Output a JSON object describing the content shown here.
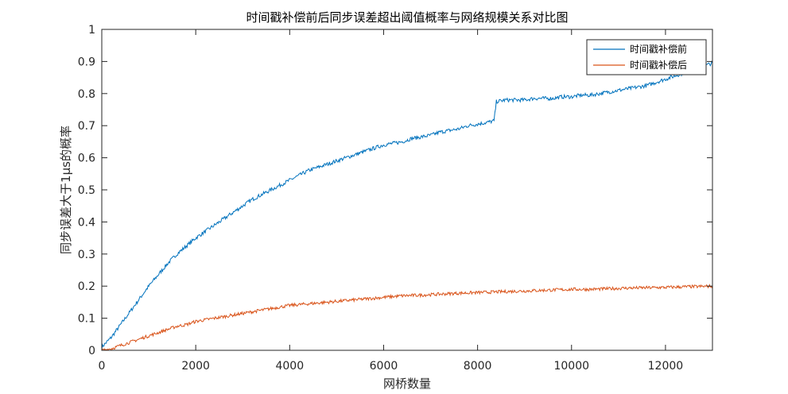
{
  "chart_data": {
    "type": "line",
    "title": "时间戳补偿前后同步误差超出阈值概率与网络规模关系对比图",
    "xlabel": "网桥数量",
    "ylabel": "同步误差大于1μs的概率",
    "xlim": [
      0,
      13000
    ],
    "ylim": [
      0,
      1
    ],
    "xticks": [
      0,
      2000,
      4000,
      6000,
      8000,
      10000,
      12000
    ],
    "xtick_labels": [
      "0",
      "2000",
      "4000",
      "6000",
      "8000",
      "10000",
      "12000"
    ],
    "yticks": [
      0,
      0.1,
      0.2,
      0.3,
      0.4,
      0.5,
      0.6,
      0.7,
      0.8,
      0.9,
      1
    ],
    "ytick_labels": [
      "0",
      "0.1",
      "0.2",
      "0.3",
      "0.4",
      "0.5",
      "0.6",
      "0.7",
      "0.8",
      "0.9",
      "1"
    ],
    "grid": false,
    "legend_position": "top-right",
    "series": [
      {
        "name": "时间戳补偿前",
        "color": "#0072BD",
        "x": [
          0,
          200,
          400,
          600,
          800,
          1000,
          1200,
          1400,
          1600,
          1800,
          2000,
          2200,
          2400,
          2600,
          2800,
          3000,
          3200,
          3400,
          3600,
          3800,
          4000,
          4200,
          4400,
          4600,
          4800,
          5000,
          5200,
          5400,
          5600,
          5800,
          6000,
          6200,
          6400,
          6600,
          6800,
          7000,
          7200,
          7400,
          7600,
          7800,
          8000,
          8200,
          8350,
          8400,
          8600,
          8800,
          9000,
          9200,
          9400,
          9600,
          9800,
          10000,
          10200,
          10400,
          10600,
          10800,
          11000,
          11200,
          11400,
          11600,
          11800,
          12000,
          12200,
          12400,
          12600,
          12800,
          13000
        ],
        "values": [
          0.01,
          0.04,
          0.08,
          0.12,
          0.16,
          0.2,
          0.235,
          0.27,
          0.3,
          0.325,
          0.35,
          0.37,
          0.39,
          0.41,
          0.43,
          0.45,
          0.47,
          0.485,
          0.5,
          0.515,
          0.53,
          0.545,
          0.56,
          0.57,
          0.58,
          0.59,
          0.6,
          0.61,
          0.62,
          0.63,
          0.64,
          0.645,
          0.65,
          0.66,
          0.665,
          0.67,
          0.68,
          0.685,
          0.69,
          0.7,
          0.705,
          0.71,
          0.715,
          0.775,
          0.78,
          0.78,
          0.78,
          0.785,
          0.785,
          0.785,
          0.79,
          0.79,
          0.795,
          0.795,
          0.8,
          0.805,
          0.81,
          0.815,
          0.82,
          0.825,
          0.835,
          0.845,
          0.855,
          0.865,
          0.875,
          0.885,
          0.895
        ]
      },
      {
        "name": "时间戳补偿后",
        "color": "#D95319",
        "x": [
          0,
          200,
          400,
          600,
          800,
          1000,
          1200,
          1400,
          1600,
          1800,
          2000,
          2400,
          2800,
          3200,
          3600,
          4000,
          4400,
          4800,
          5200,
          5600,
          6000,
          6400,
          6800,
          7200,
          7600,
          8000,
          8400,
          8800,
          9200,
          9600,
          10000,
          10400,
          10800,
          11200,
          11600,
          12000,
          12400,
          12800,
          13000
        ],
        "values": [
          0.0,
          0.005,
          0.015,
          0.025,
          0.035,
          0.045,
          0.055,
          0.065,
          0.075,
          0.08,
          0.09,
          0.1,
          0.11,
          0.12,
          0.13,
          0.14,
          0.145,
          0.15,
          0.155,
          0.16,
          0.165,
          0.17,
          0.172,
          0.175,
          0.178,
          0.18,
          0.182,
          0.184,
          0.186,
          0.188,
          0.19,
          0.19,
          0.192,
          0.194,
          0.195,
          0.196,
          0.198,
          0.199,
          0.2
        ]
      }
    ]
  }
}
